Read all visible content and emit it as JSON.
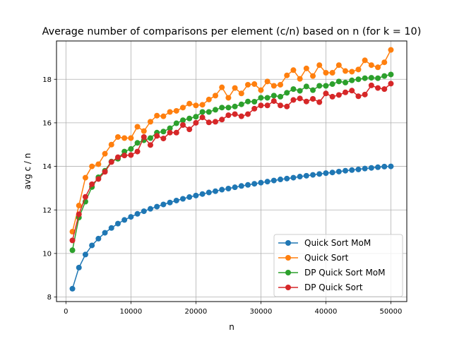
{
  "chart_data": {
    "type": "line",
    "title": "Average number of comparisons per element (c/n) based on n (for k = 10)",
    "xlabel": "n",
    "ylabel": "avg c / n",
    "xlim": [
      -1450,
      52450
    ],
    "ylim": [
      7.79,
      19.76
    ],
    "xticks": [
      0,
      10000,
      20000,
      30000,
      40000,
      50000
    ],
    "yticks": [
      8,
      10,
      12,
      14,
      16,
      18
    ],
    "grid": true,
    "legend_position": "lower right",
    "x": [
      1000,
      2000,
      3000,
      4000,
      5000,
      6000,
      7000,
      8000,
      9000,
      10000,
      11000,
      12000,
      13000,
      14000,
      15000,
      16000,
      17000,
      18000,
      19000,
      20000,
      21000,
      22000,
      23000,
      24000,
      25000,
      26000,
      27000,
      28000,
      29000,
      30000,
      31000,
      32000,
      33000,
      34000,
      35000,
      36000,
      37000,
      38000,
      39000,
      40000,
      41000,
      42000,
      43000,
      44000,
      45000,
      46000,
      47000,
      48000,
      49000,
      50000
    ],
    "series": [
      {
        "name": "Quick Sort MoM",
        "color": "#1f77b4",
        "values": [
          8.38,
          9.35,
          9.95,
          10.37,
          10.68,
          10.95,
          11.17,
          11.37,
          11.54,
          11.68,
          11.82,
          11.94,
          12.05,
          12.15,
          12.25,
          12.34,
          12.43,
          12.51,
          12.59,
          12.66,
          12.73,
          12.8,
          12.86,
          12.93,
          12.98,
          13.04,
          13.1,
          13.15,
          13.2,
          13.25,
          13.3,
          13.35,
          13.4,
          13.44,
          13.48,
          13.53,
          13.57,
          13.61,
          13.65,
          13.69,
          13.72,
          13.76,
          13.8,
          13.83,
          13.86,
          13.9,
          13.93,
          13.96,
          13.99,
          14.0
        ]
      },
      {
        "name": "Quick Sort",
        "color": "#ff7f0e",
        "values": [
          11.0,
          12.2,
          13.48,
          14.0,
          14.1,
          14.58,
          15.0,
          15.35,
          15.3,
          15.3,
          15.82,
          15.62,
          16.05,
          16.33,
          16.3,
          16.5,
          16.55,
          16.7,
          16.88,
          16.8,
          16.83,
          17.07,
          17.25,
          17.63,
          17.15,
          17.6,
          17.35,
          17.75,
          17.78,
          17.5,
          17.9,
          17.7,
          17.75,
          18.18,
          18.42,
          18.02,
          18.5,
          18.15,
          18.65,
          18.3,
          18.3,
          18.65,
          18.38,
          18.35,
          18.45,
          18.87,
          18.65,
          18.55,
          18.78,
          19.35
        ]
      },
      {
        "name": "DP Quick Sort MoM",
        "color": "#2ca02c",
        "values": [
          10.15,
          11.65,
          12.38,
          13.05,
          13.5,
          13.8,
          14.22,
          14.35,
          14.68,
          14.8,
          15.08,
          15.2,
          15.3,
          15.55,
          15.6,
          15.75,
          15.98,
          16.12,
          16.2,
          16.28,
          16.5,
          16.5,
          16.6,
          16.7,
          16.7,
          16.75,
          16.85,
          16.98,
          16.97,
          17.15,
          17.15,
          17.25,
          17.2,
          17.38,
          17.55,
          17.47,
          17.67,
          17.5,
          17.7,
          17.7,
          17.78,
          17.9,
          17.85,
          17.95,
          18.0,
          18.05,
          18.07,
          18.05,
          18.15,
          18.22
        ]
      },
      {
        "name": "DP Quick Sort",
        "color": "#d62728",
        "values": [
          10.6,
          11.8,
          12.6,
          13.18,
          13.42,
          13.75,
          14.2,
          14.42,
          14.5,
          14.52,
          14.68,
          15.35,
          14.98,
          15.4,
          15.28,
          15.55,
          15.55,
          15.9,
          15.7,
          16.0,
          16.25,
          16.02,
          16.05,
          16.15,
          16.35,
          16.4,
          16.3,
          16.4,
          16.65,
          16.8,
          16.8,
          17.0,
          16.8,
          16.75,
          17.05,
          17.12,
          16.98,
          17.1,
          16.95,
          17.35,
          17.2,
          17.28,
          17.4,
          17.48,
          17.22,
          17.3,
          17.72,
          17.6,
          17.55,
          17.8
        ]
      }
    ]
  }
}
